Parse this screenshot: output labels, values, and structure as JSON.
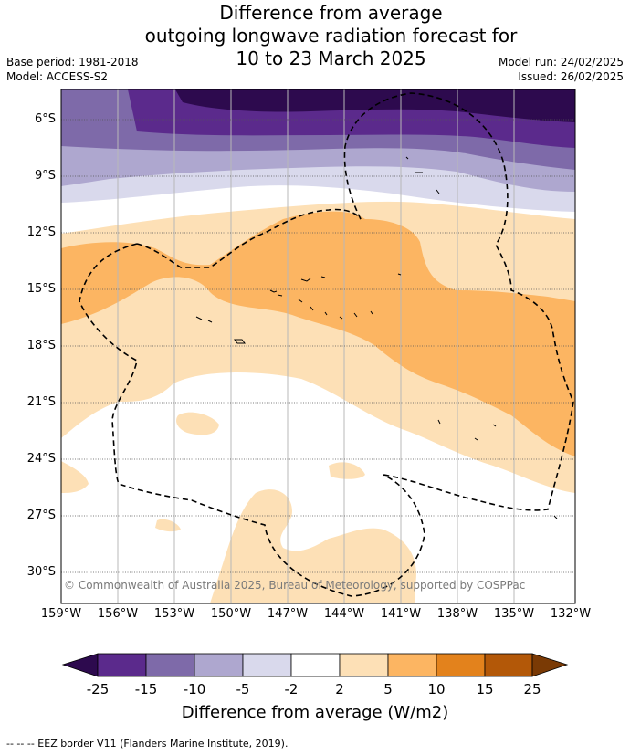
{
  "title_lines": [
    "Difference from average",
    "outgoing longwave radiation forecast for",
    "10 to 23 March 2025"
  ],
  "base_period": "Base period: 1981-2018",
  "model": "Model: ACCESS-S2",
  "model_run": "Model run: 24/02/2025",
  "issued": "Issued: 26/02/2025",
  "copyright": "© Commonwealth of Australia 2025, Bureau of Meteorology, supported by COSPPac",
  "map": {
    "lat_labels": [
      "6°S",
      "9°S",
      "12°S",
      "15°S",
      "18°S",
      "21°S",
      "24°S",
      "27°S",
      "30°S"
    ],
    "lon_labels": [
      "159°W",
      "156°W",
      "153°W",
      "150°W",
      "147°W",
      "144°W",
      "141°W",
      "138°W",
      "135°W",
      "132°W"
    ]
  },
  "colorbar": {
    "ticks": [
      "-25",
      "-15",
      "-10",
      "-5",
      "-2",
      "2",
      "5",
      "10",
      "15",
      "25"
    ],
    "colors": {
      "below_min": "#2d0a4e",
      "c1": "#5b2a8c",
      "c2": "#7e6aa9",
      "c3": "#aea7cf",
      "c4": "#d9d9ec",
      "c5": "#ffffff",
      "c6": "#fde0b6",
      "c7": "#fcb562",
      "c8": "#e3821c",
      "c9": "#b35808",
      "above_max": "#7a3a05"
    },
    "title": "Difference from average (W/m2)"
  },
  "legend_footer": "--  --  -- EEZ border V11 (Flanders Marine Institute, 2019)."
}
